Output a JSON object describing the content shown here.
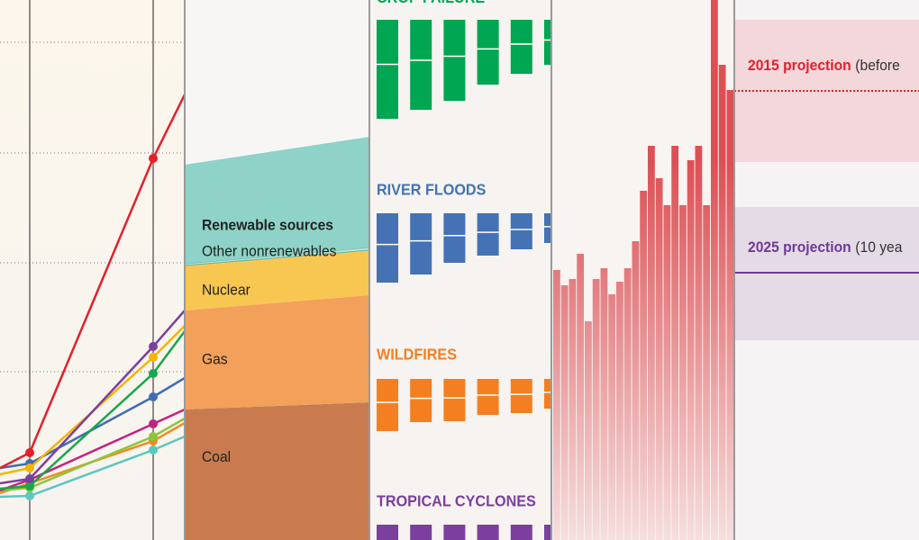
{
  "chart_data": [
    {
      "type": "line",
      "categories": [
        null,
        null,
        null,
        null
      ],
      "ylim": [
        0,
        600
      ],
      "yticks": [
        187,
        308,
        430,
        553
      ],
      "grid": true,
      "series": [
        {
          "color": "#e4202a",
          "values": [
            80,
            97,
            424,
            495
          ]
        },
        {
          "color": "#7b3f9e",
          "values": [
            63,
            68,
            215,
            255
          ]
        },
        {
          "color": "#f4b400",
          "values": [
            73,
            80,
            203,
            238
          ]
        },
        {
          "color": "#1aa64a",
          "values": [
            57,
            60,
            185,
            232
          ]
        },
        {
          "color": "#3e6db5",
          "values": [
            80,
            85,
            159,
            180
          ]
        },
        {
          "color": "#c2227f",
          "values": [
            55,
            67,
            129,
            145
          ]
        },
        {
          "color": "#8cc63f",
          "values": [
            55,
            58,
            115,
            135
          ]
        },
        {
          "color": "#f08a24",
          "values": [
            52,
            63,
            110,
            130
          ]
        },
        {
          "color": "#5bc8c0",
          "values": [
            48,
            49,
            100,
            115
          ]
        }
      ]
    },
    {
      "type": "area",
      "categories": [
        null,
        null
      ],
      "ylim": [
        0,
        600
      ],
      "series": [
        {
          "name": "Coal",
          "color": "#c97b4f",
          "values": [
            145,
            153
          ]
        },
        {
          "name": "Gas",
          "color": "#f2a05a",
          "values": [
            110,
            119
          ]
        },
        {
          "name": "Nuclear",
          "color": "#f8c752",
          "values": [
            50,
            50
          ]
        },
        {
          "name": "Other nonrenewables",
          "color": "#bfe3dc",
          "values": [
            2,
            3
          ]
        },
        {
          "name": "Renewable sources",
          "color": "#8ed2c8",
          "values": [
            110,
            123
          ]
        }
      ]
    },
    {
      "type": "bar",
      "panels": [
        {
          "title": "CROP FAILURE",
          "color": "#00a651",
          "values": [
            110,
            100,
            90,
            72,
            60,
            50
          ]
        },
        {
          "title": "RIVER FLOODS",
          "color": "#4472b4",
          "values": [
            77,
            68,
            55,
            47,
            40,
            33
          ]
        },
        {
          "title": "WILDFIRES",
          "color": "#f47f20",
          "values": [
            58,
            48,
            47,
            40,
            38,
            33
          ]
        },
        {
          "title": "TROPICAL CYCLONES",
          "color": "#7b3f9e",
          "values": [
            20,
            20,
            20,
            20,
            20,
            20
          ]
        }
      ]
    },
    {
      "type": "bar",
      "color": "#e05a5f",
      "ylim": [
        0,
        600
      ],
      "values": [
        300,
        283,
        290,
        318,
        243,
        290,
        302,
        273,
        287,
        302,
        332,
        388,
        438,
        402,
        372,
        438,
        372,
        422,
        438,
        372,
        610,
        528,
        500
      ]
    },
    {
      "type": "band",
      "ylim": [
        0,
        600
      ],
      "bands": [
        {
          "title": "2015 projection",
          "note": "(before",
          "color": "#e2202c",
          "value": 499,
          "range": [
            420,
            578
          ],
          "line_style": "dotted"
        },
        {
          "title": "2025 projection",
          "note": "(10 yea",
          "color": "#6f3a94",
          "value": 297,
          "range": [
            222,
            370
          ],
          "line_style": "solid"
        }
      ]
    }
  ]
}
